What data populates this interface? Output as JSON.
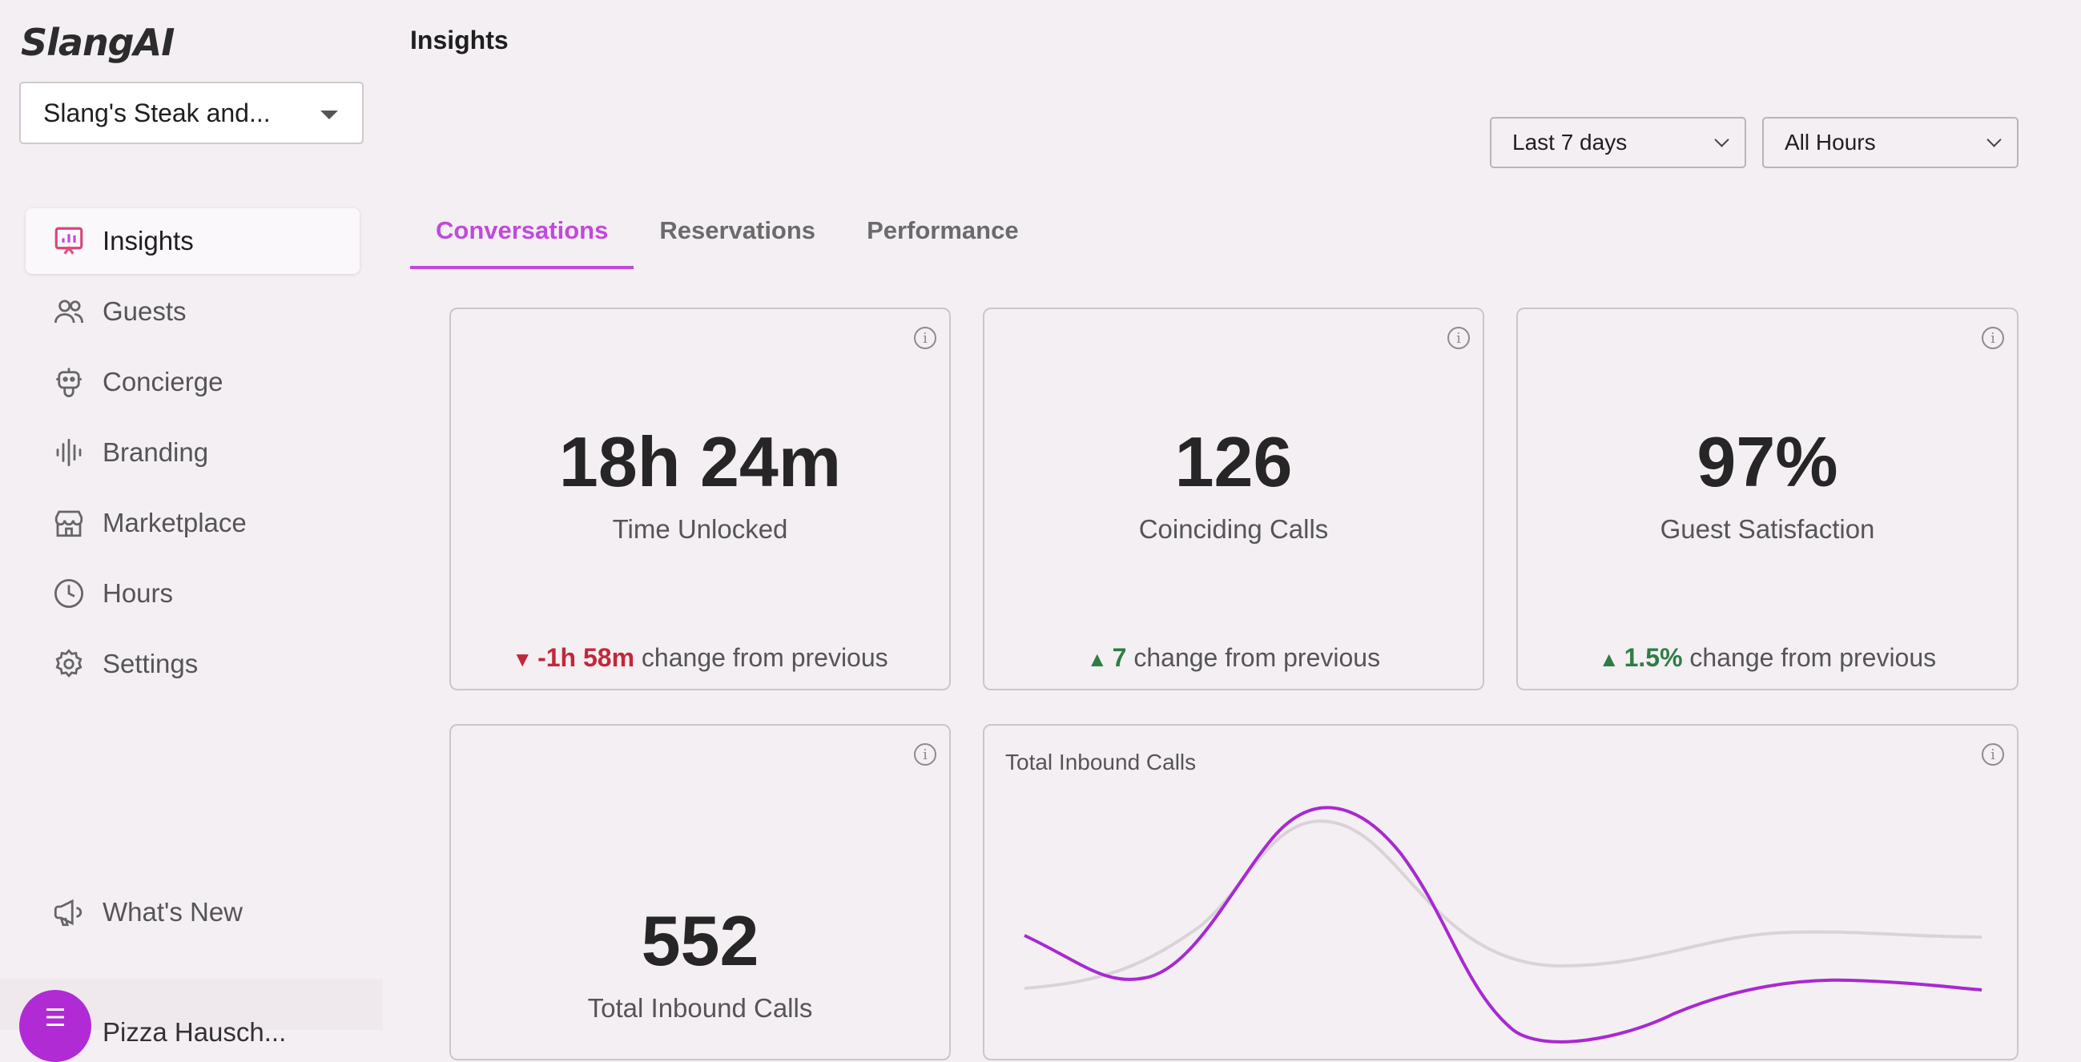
{
  "app": {
    "logo": "SlangAI"
  },
  "location_select": {
    "value": "Slang's Steak and..."
  },
  "sidebar": {
    "items": [
      {
        "label": "Insights",
        "icon": "presentation-chart-icon",
        "active": true
      },
      {
        "label": "Guests",
        "icon": "users-icon"
      },
      {
        "label": "Concierge",
        "icon": "robot-icon"
      },
      {
        "label": "Branding",
        "icon": "audio-waveform-icon"
      },
      {
        "label": "Marketplace",
        "icon": "storefront-icon"
      },
      {
        "label": "Hours",
        "icon": "clock-icon"
      },
      {
        "label": "Settings",
        "icon": "gear-icon"
      }
    ],
    "whats_new": "What's New",
    "user_name": "Pizza Hausch..."
  },
  "header": {
    "title": "Insights"
  },
  "filters": {
    "date_range": "Last 7 days",
    "hours": "All Hours"
  },
  "tabs": [
    {
      "label": "Conversations",
      "active": true
    },
    {
      "label": "Reservations"
    },
    {
      "label": "Performance"
    }
  ],
  "cards": {
    "time_unlocked": {
      "value": "18h 24m",
      "label": "Time Unlocked",
      "change_arrow": "▼",
      "change_value": "-1h 58m",
      "change_text": "change from previous"
    },
    "coinciding_calls": {
      "value": "126",
      "label": "Coinciding Calls",
      "change_arrow": "▲",
      "change_value": "7",
      "change_text": "change from previous"
    },
    "guest_satisfaction": {
      "value": "97%",
      "label": "Guest Satisfaction",
      "change_arrow": "▲",
      "change_value": "1.5%",
      "change_text": "change from previous"
    },
    "total_inbound": {
      "value": "552",
      "label": "Total Inbound Calls"
    }
  },
  "inbound_chart": {
    "title": "Total Inbound Calls",
    "current_color": "#a829d0",
    "previous_color": "#d9d3d8"
  },
  "colors": {
    "accent": "#c04ad9",
    "negative": "#c0283c",
    "positive": "#2e7d45"
  }
}
